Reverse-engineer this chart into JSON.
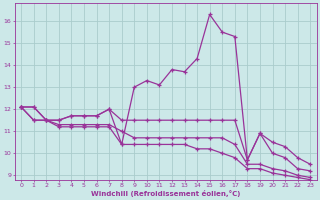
{
  "xlabel": "Windchill (Refroidissement éolien,°C)",
  "bg_color": "#cce8e8",
  "grid_color": "#aacccc",
  "line_color": "#993399",
  "xlim": [
    -0.5,
    23.5
  ],
  "ylim": [
    8.8,
    16.8
  ],
  "yticks": [
    9,
    10,
    11,
    12,
    13,
    14,
    15,
    16
  ],
  "xticks": [
    0,
    1,
    2,
    3,
    4,
    5,
    6,
    7,
    8,
    9,
    10,
    11,
    12,
    13,
    14,
    15,
    16,
    17,
    18,
    19,
    20,
    21,
    22,
    23
  ],
  "series": [
    [
      12.1,
      12.1,
      11.5,
      11.5,
      11.7,
      11.7,
      11.7,
      12.0,
      10.4,
      13.0,
      13.3,
      13.1,
      13.8,
      13.7,
      14.3,
      16.3,
      15.5,
      15.3,
      9.7,
      10.9,
      10.0,
      9.8,
      9.3,
      9.2
    ],
    [
      12.1,
      12.1,
      11.5,
      11.5,
      11.7,
      11.7,
      11.7,
      12.0,
      11.5,
      11.5,
      11.5,
      11.5,
      11.5,
      11.5,
      11.5,
      11.5,
      11.5,
      11.5,
      9.7,
      10.9,
      10.5,
      10.3,
      9.8,
      9.5
    ],
    [
      12.1,
      11.5,
      11.5,
      11.3,
      11.3,
      11.3,
      11.3,
      11.3,
      11.0,
      10.7,
      10.7,
      10.7,
      10.7,
      10.7,
      10.7,
      10.7,
      10.7,
      10.4,
      9.5,
      9.5,
      9.3,
      9.2,
      9.0,
      8.9
    ],
    [
      12.1,
      11.5,
      11.5,
      11.2,
      11.2,
      11.2,
      11.2,
      11.2,
      10.4,
      10.4,
      10.4,
      10.4,
      10.4,
      10.4,
      10.2,
      10.2,
      10.0,
      9.8,
      9.3,
      9.3,
      9.1,
      9.0,
      8.9,
      8.8
    ]
  ]
}
